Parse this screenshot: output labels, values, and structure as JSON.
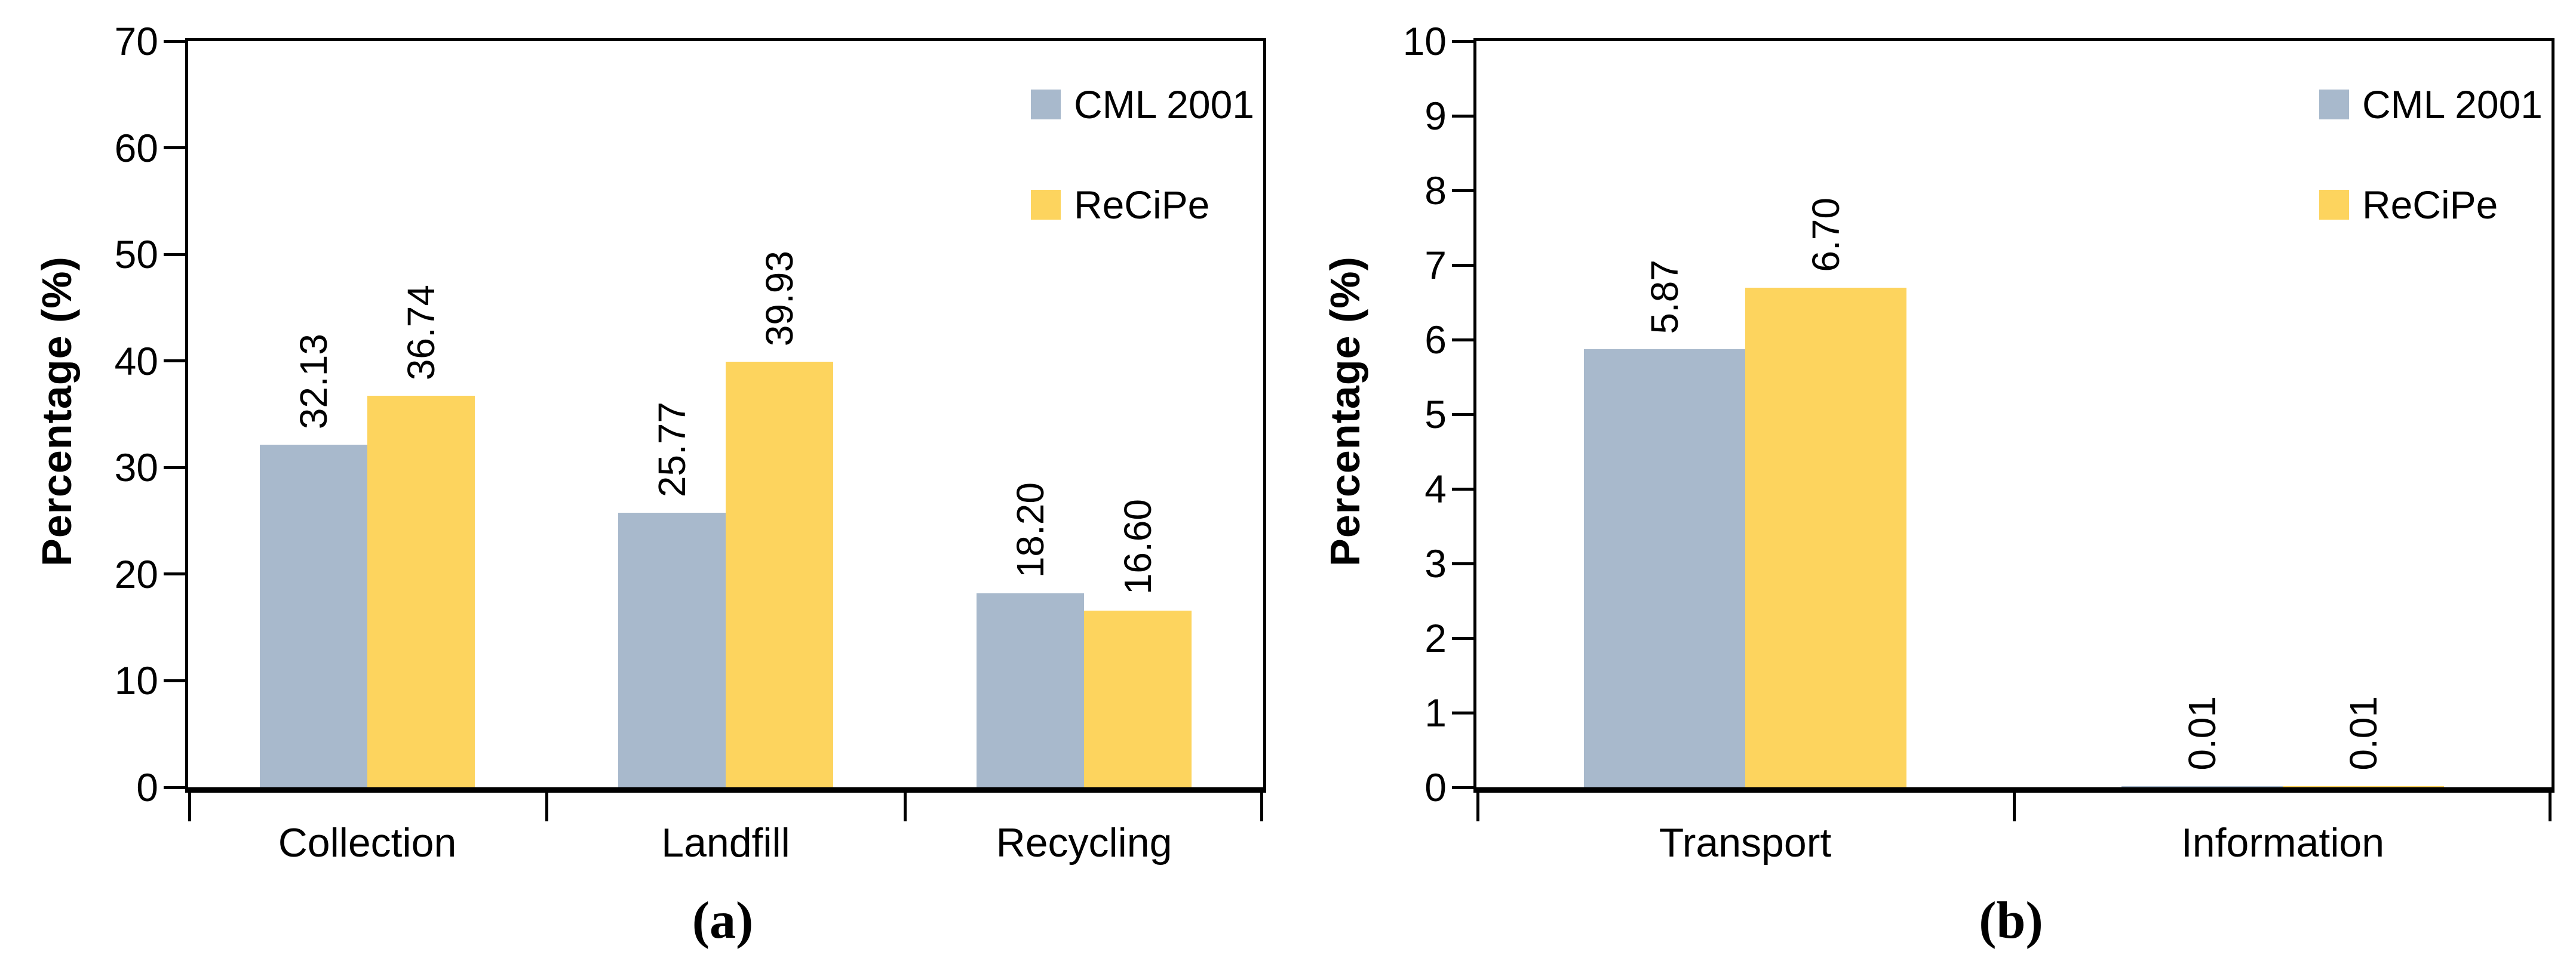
{
  "figure": {
    "background": "#ffffff",
    "axis_color": "#000000",
    "text_color": "#000000"
  },
  "chart_data": [
    {
      "type": "bar",
      "caption": "(a)",
      "ylabel": "Percentage (%)",
      "xlabel": "",
      "categories": [
        "Collection",
        "Landfill",
        "Recycling"
      ],
      "series": [
        {
          "name": "CML 2001",
          "color": "#A8B9CC",
          "values": [
            32.13,
            25.77,
            18.2
          ],
          "labels": [
            "32.13",
            "25.77",
            "18.20"
          ]
        },
        {
          "name": "ReCiPe",
          "color": "#FDD45E",
          "values": [
            36.74,
            39.93,
            16.6
          ],
          "labels": [
            "36.74",
            "39.93",
            "16.60"
          ]
        }
      ],
      "ylim": [
        0,
        70
      ],
      "yticks": [
        0,
        10,
        20,
        30,
        40,
        50,
        60,
        70
      ],
      "grid": false,
      "legend_position": "top-right-inside",
      "data_label_orientation": "vertical"
    },
    {
      "type": "bar",
      "caption": "(b)",
      "ylabel": "Percentage (%)",
      "xlabel": "",
      "categories": [
        "Transport",
        "Information"
      ],
      "series": [
        {
          "name": "CML 2001",
          "color": "#A8B9CC",
          "values": [
            5.87,
            0.01
          ],
          "labels": [
            "5.87",
            "0.01"
          ]
        },
        {
          "name": "ReCiPe",
          "color": "#FDD45E",
          "values": [
            6.7,
            0.01
          ],
          "labels": [
            "6.70",
            "0.01"
          ]
        }
      ],
      "ylim": [
        0,
        10
      ],
      "yticks": [
        0,
        1,
        2,
        3,
        4,
        5,
        6,
        7,
        8,
        9,
        10
      ],
      "grid": false,
      "legend_position": "top-right-inside",
      "data_label_orientation": "vertical"
    }
  ]
}
